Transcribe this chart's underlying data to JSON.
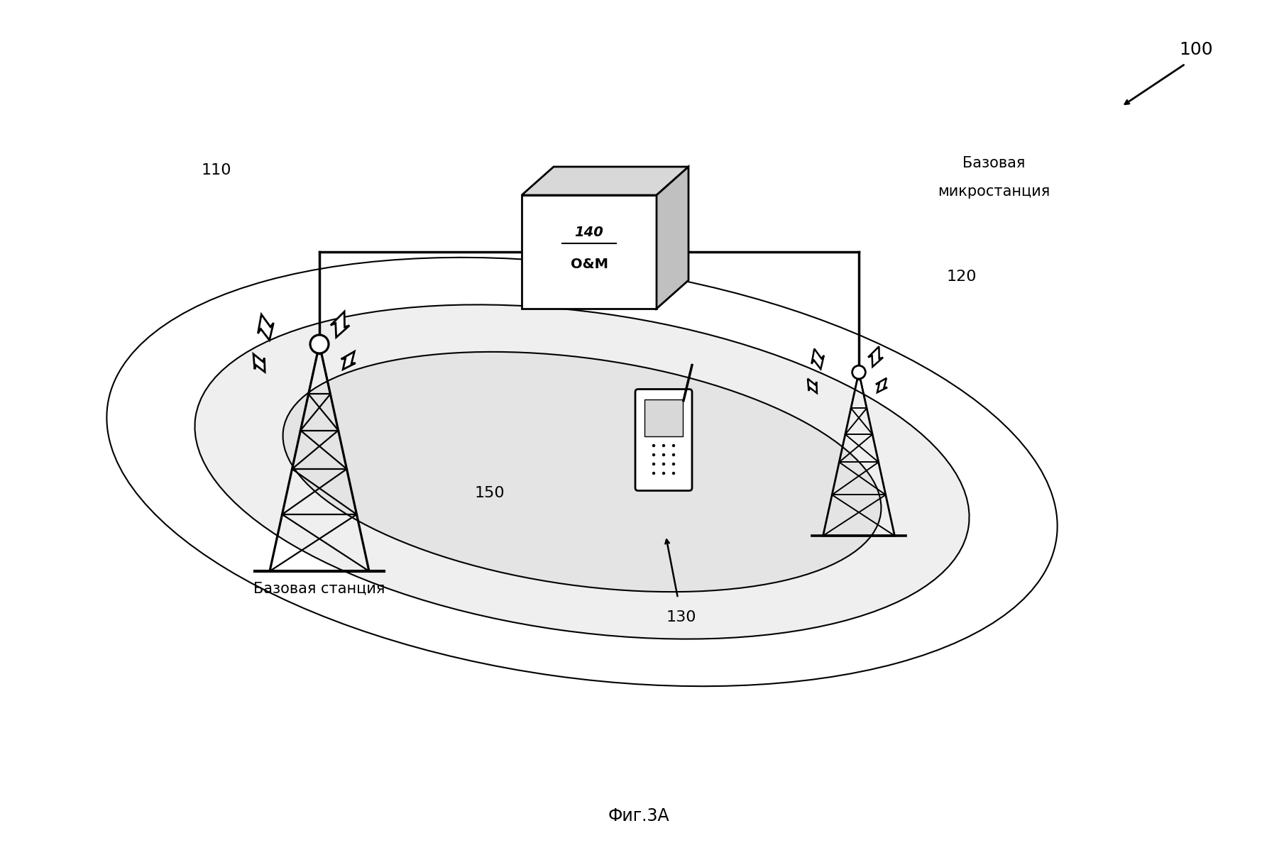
{
  "fig_caption": "Фиг.3A",
  "bg_color": "#ffffff",
  "label_100": "100",
  "label_110": "110",
  "label_120": "120",
  "label_130": "130",
  "label_140_line1": "140",
  "label_140_line2": "O&M",
  "label_150": "150",
  "label_base_station": "Базовая станция",
  "label_micro_station_line1": "Базовая",
  "label_micro_station_line2": "микростанция",
  "line_color": "#000000",
  "text_color": "#000000"
}
